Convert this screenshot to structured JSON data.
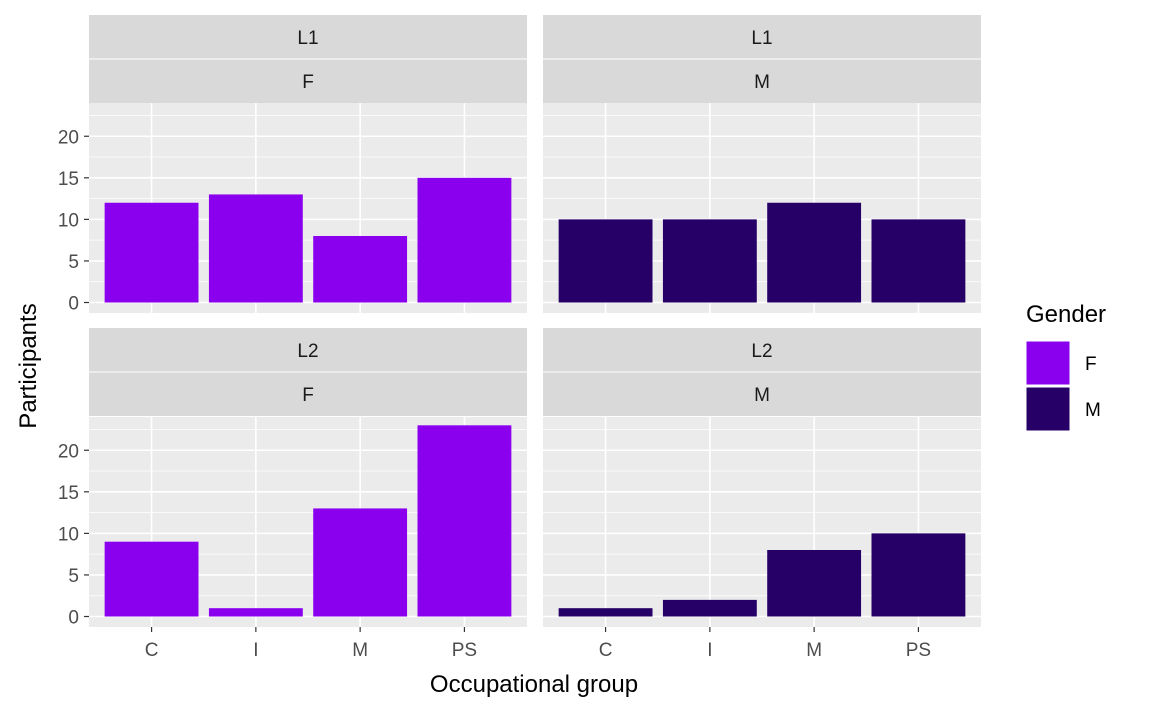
{
  "colors": {
    "F": "#8A00EE",
    "M": "#260066",
    "panel_bg": "#EBEBEB",
    "strip_bg": "#D9D9D9",
    "grid": "#FFFFFF"
  },
  "chart_data": {
    "type": "bar",
    "xlabel": "Occupational group",
    "ylabel": "Participants",
    "categories": [
      "C",
      "I",
      "M",
      "PS"
    ],
    "ylim": [
      0,
      24
    ],
    "yticks": [
      0,
      5,
      10,
      15,
      20
    ],
    "grid": true,
    "legend": {
      "title": "Gender",
      "position": "right",
      "entries": [
        "F",
        "M"
      ]
    },
    "panels": [
      {
        "row": "L1",
        "col": "F",
        "gender": "F",
        "values": [
          12,
          13,
          8,
          15
        ]
      },
      {
        "row": "L1",
        "col": "M",
        "gender": "M",
        "values": [
          10,
          10,
          12,
          10
        ]
      },
      {
        "row": "L2",
        "col": "F",
        "gender": "F",
        "values": [
          9,
          1,
          13,
          23
        ]
      },
      {
        "row": "L2",
        "col": "M",
        "gender": "M",
        "values": [
          1,
          2,
          8,
          10
        ]
      }
    ]
  }
}
